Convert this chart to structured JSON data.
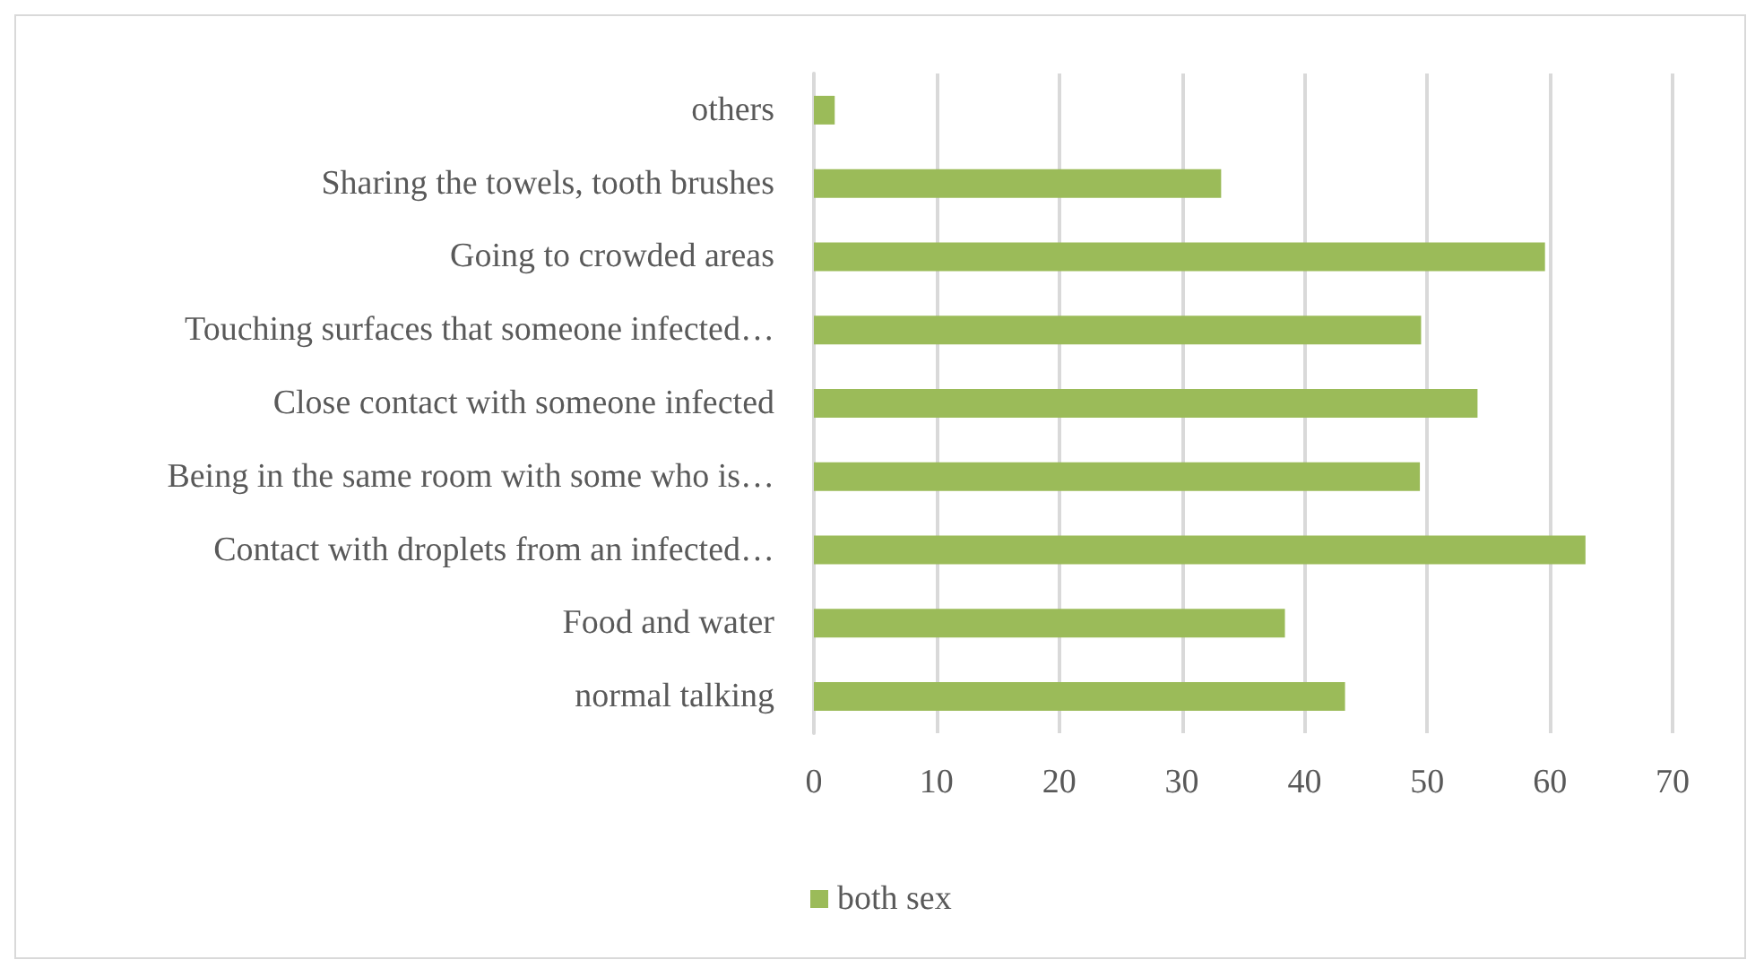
{
  "chart_data": {
    "type": "bar",
    "orientation": "horizontal",
    "categories": [
      "others",
      "Sharing the towels, tooth brushes",
      "Going to crowded areas",
      "Touching surfaces that someone infected…",
      "Close contact with someone infected",
      "Being in the same room with some who is…",
      "Contact with droplets from an infected…",
      "Food and water",
      "normal talking"
    ],
    "series": [
      {
        "name": "both sex",
        "color": "#9bbb59",
        "values": [
          1.7,
          33.2,
          59.6,
          49.5,
          54.1,
          49.4,
          62.9,
          38.4,
          43.3
        ]
      }
    ],
    "xlim": [
      0,
      70
    ],
    "xticks": [
      0,
      10,
      20,
      30,
      40,
      50,
      60,
      70
    ],
    "grid": "x",
    "legend": "bottom"
  }
}
